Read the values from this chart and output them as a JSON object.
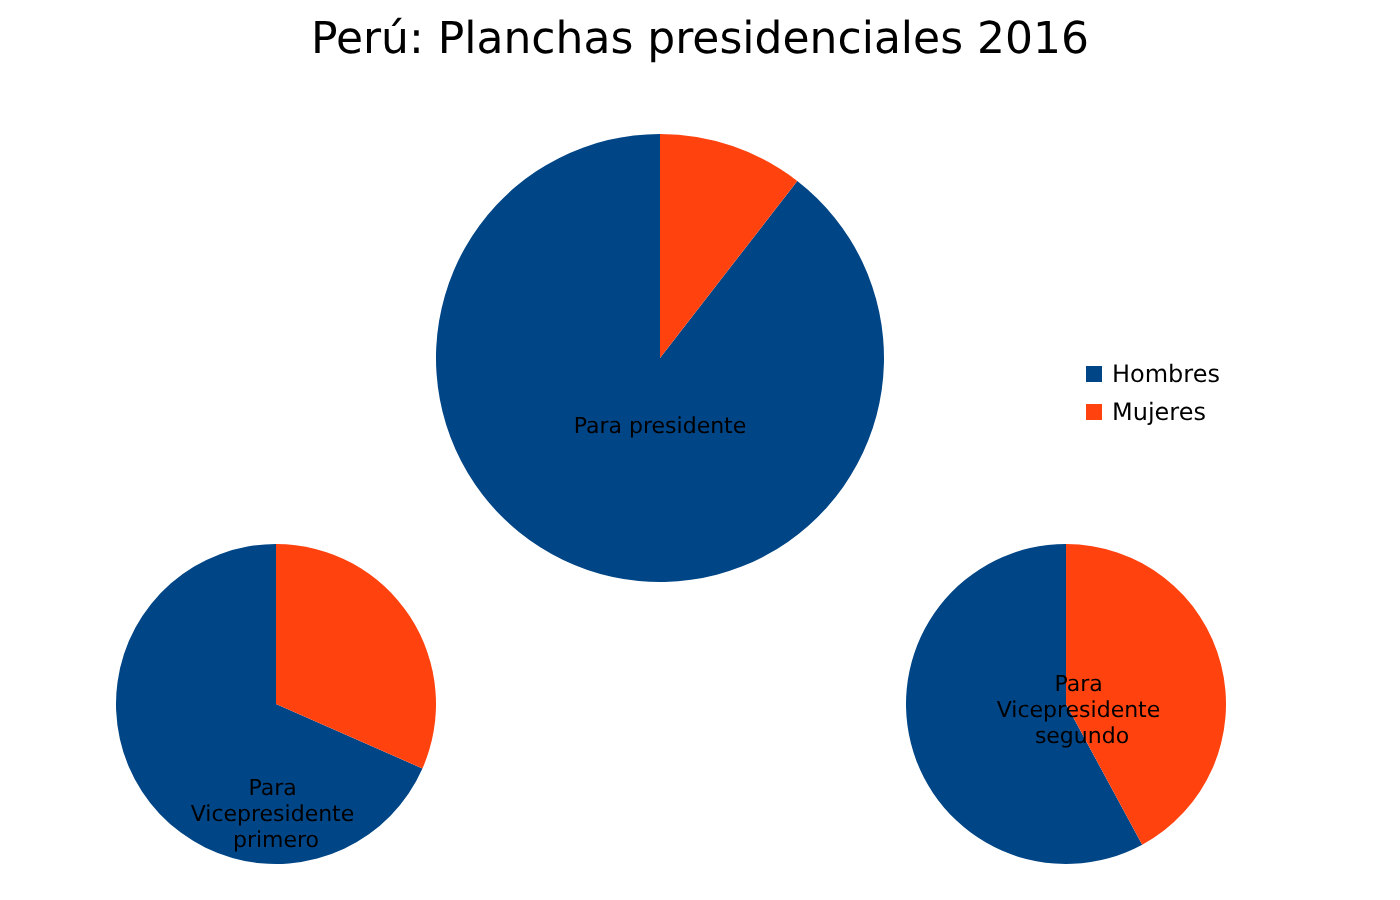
{
  "chart_data": {
    "type": "pie",
    "title": "Perú: Planchas presidenciales 2016",
    "categories": [
      "Hombres",
      "Mujeres"
    ],
    "colors": [
      "#004586",
      "#ff420e"
    ],
    "legend": "right",
    "series": [
      {
        "name": "Para presidente",
        "values": [
          89.5,
          10.5
        ]
      },
      {
        "name": "Para Vicepresidente primero",
        "values": [
          68.4,
          31.6
        ]
      },
      {
        "name": "Para Vicepresidente segundo",
        "values": [
          57.9,
          42.1
        ]
      }
    ]
  }
}
